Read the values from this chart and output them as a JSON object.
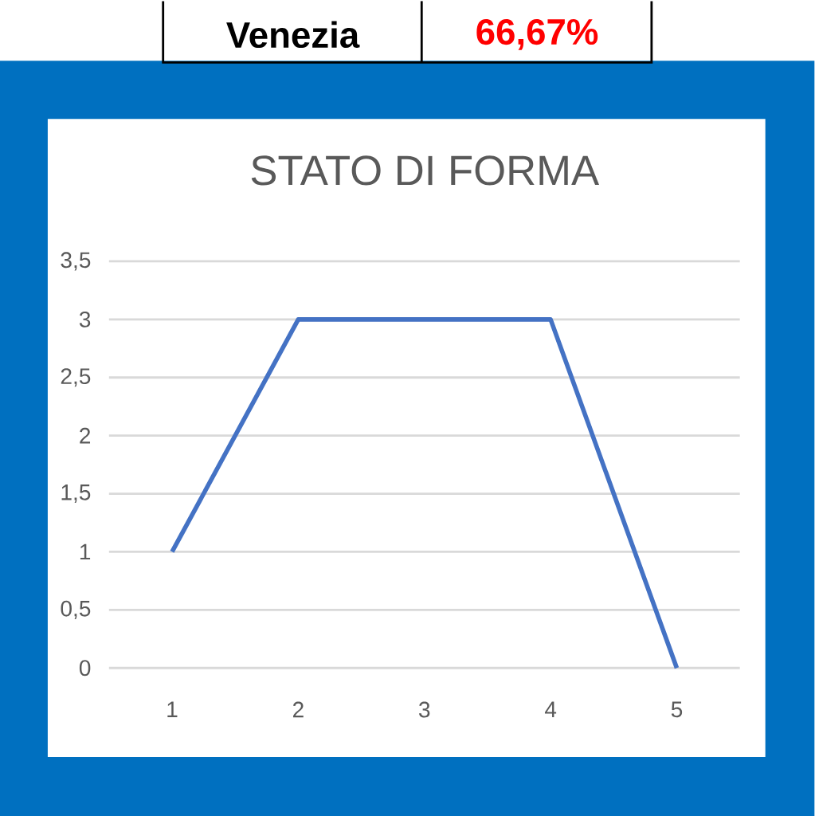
{
  "chart_data": {
    "type": "line",
    "title": "STATO DI FORMA",
    "categories": [
      "1",
      "2",
      "3",
      "4",
      "5"
    ],
    "series": [
      {
        "color": "#4472c4",
        "values": [
          1,
          3,
          3,
          3,
          0
        ]
      }
    ],
    "ylim": [
      0,
      3.5
    ],
    "yticks": [
      0,
      {
        "value": 0.5,
        "label": "0,5"
      },
      1,
      {
        "value": 1.5,
        "label": "1,5"
      },
      2,
      {
        "value": 2.5,
        "label": "2,5"
      },
      3,
      {
        "value": 3.5,
        "label": "3,5"
      }
    ],
    "grid": "y",
    "marker": "none",
    "line_style": "solid",
    "annotations": [
      "Venezia",
      "66,67%"
    ]
  }
}
